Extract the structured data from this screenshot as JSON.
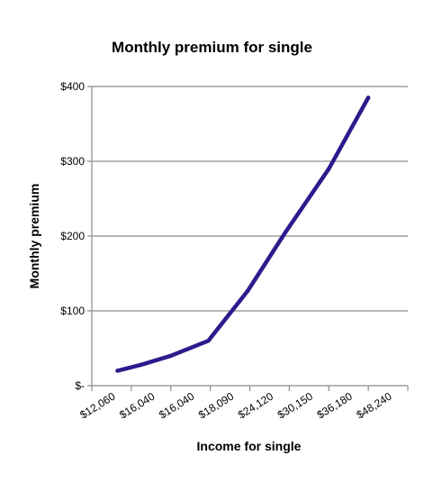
{
  "chart_data": {
    "type": "line",
    "title": "Monthly premium for single",
    "xlabel": "Income for single",
    "ylabel": "Monthly premium",
    "categories": [
      "$12,060",
      "$16,040",
      "$16,040",
      "$18,090",
      "$24,120",
      "$30,150",
      "$36,180",
      "$48,240"
    ],
    "x_positions": [
      0.15,
      0.75,
      1.5,
      2.45,
      3.45,
      4.4,
      5.5,
      6.5
    ],
    "values": [
      20,
      28,
      40,
      60,
      127,
      205,
      290,
      385
    ],
    "ylim": [
      0,
      400
    ],
    "yticks": [
      0,
      100,
      200,
      300,
      400
    ],
    "ytick_labels": [
      "$-",
      "$100",
      "$200",
      "$300",
      "$400"
    ],
    "grid": true,
    "legend": "none",
    "line_color": "#2e1a8c",
    "grid_color": "#8c8c8c"
  }
}
